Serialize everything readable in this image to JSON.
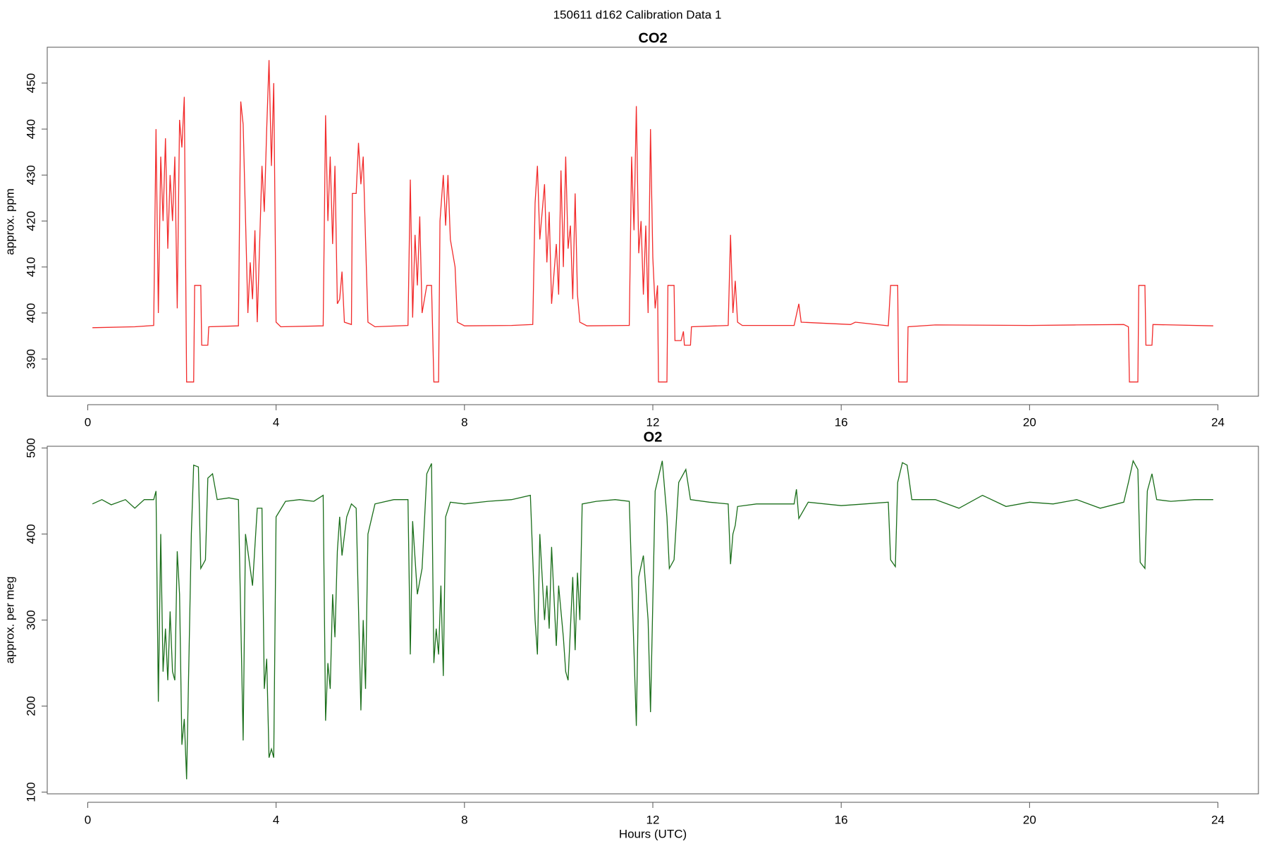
{
  "title": "150611   d162   Calibration Data 1",
  "chart_data": [
    {
      "type": "line",
      "title": "CO2",
      "ylabel": "approx. ppm",
      "color": "#f22a2a",
      "xlim": [
        -0.86,
        24.86
      ],
      "xticks": [
        0,
        4,
        8,
        12,
        16,
        20,
        24
      ],
      "ylim": [
        381.9,
        457.8
      ],
      "yticks": [
        390,
        400,
        410,
        420,
        430,
        440,
        450
      ],
      "x": [
        0.1,
        1.0,
        1.4,
        1.45,
        1.5,
        1.55,
        1.6,
        1.65,
        1.7,
        1.75,
        1.8,
        1.85,
        1.9,
        1.95,
        2.0,
        2.05,
        2.1,
        2.25,
        2.27,
        2.4,
        2.42,
        2.55,
        2.57,
        3.2,
        3.25,
        3.3,
        3.4,
        3.45,
        3.5,
        3.55,
        3.6,
        3.7,
        3.75,
        3.8,
        3.85,
        3.9,
        3.95,
        4.0,
        4.1,
        5.0,
        5.05,
        5.1,
        5.15,
        5.2,
        5.25,
        5.3,
        5.35,
        5.4,
        5.45,
        5.6,
        5.62,
        5.7,
        5.75,
        5.8,
        5.85,
        5.9,
        5.95,
        6.1,
        6.8,
        6.85,
        6.9,
        6.95,
        7.0,
        7.05,
        7.1,
        7.2,
        7.3,
        7.35,
        7.45,
        7.48,
        7.55,
        7.6,
        7.65,
        7.7,
        7.8,
        7.85,
        8.0,
        9.0,
        9.45,
        9.5,
        9.55,
        9.6,
        9.7,
        9.75,
        9.8,
        9.85,
        9.95,
        10.0,
        10.05,
        10.1,
        10.15,
        10.2,
        10.25,
        10.3,
        10.35,
        10.4,
        10.45,
        10.6,
        11.5,
        11.55,
        11.6,
        11.65,
        11.7,
        11.75,
        11.8,
        11.85,
        11.9,
        11.95,
        12.0,
        12.05,
        12.1,
        12.12,
        12.3,
        12.32,
        12.45,
        12.47,
        12.6,
        12.65,
        12.67,
        12.8,
        12.82,
        13.6,
        13.65,
        13.7,
        13.75,
        13.8,
        13.9,
        15.0,
        15.1,
        15.15,
        16.2,
        16.3,
        17.0,
        17.05,
        17.2,
        17.22,
        17.4,
        17.42,
        18.0,
        20.0,
        21.0,
        22.0,
        22.1,
        22.12,
        22.3,
        22.32,
        22.45,
        22.47,
        22.6,
        22.62,
        23.9
      ],
      "values": [
        396.8,
        397.0,
        397.3,
        440,
        400,
        434,
        420,
        438,
        414,
        430,
        420,
        434,
        401,
        442,
        436,
        447,
        385,
        385,
        406,
        406,
        393,
        393,
        397,
        397.2,
        446,
        441,
        400,
        411,
        403,
        418,
        398,
        432,
        422,
        440,
        455,
        432,
        450,
        398,
        397,
        397.2,
        443,
        420,
        434,
        415,
        432,
        402,
        403,
        409,
        398,
        397.5,
        426,
        426,
        437,
        428,
        434,
        416,
        398,
        397,
        397.3,
        429,
        399,
        417,
        406,
        421,
        400,
        406,
        406,
        385,
        385,
        420,
        430,
        419,
        430,
        416,
        410,
        398,
        397.2,
        397.3,
        397.5,
        424,
        432,
        416,
        428,
        411,
        422,
        402,
        415,
        404,
        431,
        410,
        434,
        414,
        419,
        403,
        426,
        404,
        398,
        397.2,
        397.3,
        434,
        418,
        445,
        413,
        420,
        404,
        419,
        400,
        440,
        412,
        401,
        406,
        385,
        385,
        406,
        406,
        394,
        394,
        396,
        393,
        393,
        397,
        397.3,
        417,
        400,
        407,
        398,
        397.3,
        397.3,
        402,
        398,
        397.5,
        398,
        397.2,
        406,
        406,
        385,
        385,
        397,
        397.4,
        397.3,
        397.4,
        397.5,
        397,
        385,
        385,
        406,
        406,
        393,
        393,
        397.5,
        397.2
      ]
    },
    {
      "type": "line",
      "title": "O2",
      "ylabel": "approx. per meg",
      "xlabel": "Hours (UTC)",
      "color": "#1a6e1a",
      "xlim": [
        -0.86,
        24.86
      ],
      "xticks": [
        0,
        4,
        8,
        12,
        16,
        20,
        24
      ],
      "ylim": [
        98,
        502
      ],
      "yticks": [
        100,
        200,
        300,
        400,
        500
      ],
      "x": [
        0.1,
        0.3,
        0.5,
        0.8,
        1.0,
        1.2,
        1.4,
        1.45,
        1.5,
        1.55,
        1.6,
        1.65,
        1.7,
        1.75,
        1.8,
        1.85,
        1.9,
        1.95,
        2.0,
        2.05,
        2.1,
        2.2,
        2.25,
        2.35,
        2.4,
        2.5,
        2.55,
        2.65,
        2.75,
        3.0,
        3.2,
        3.3,
        3.35,
        3.4,
        3.5,
        3.6,
        3.7,
        3.75,
        3.8,
        3.85,
        3.9,
        3.95,
        4.0,
        4.2,
        4.5,
        4.8,
        5.0,
        5.05,
        5.1,
        5.15,
        5.2,
        5.25,
        5.3,
        5.35,
        5.4,
        5.5,
        5.6,
        5.7,
        5.8,
        5.85,
        5.9,
        5.95,
        6.1,
        6.5,
        6.8,
        6.85,
        6.9,
        7.0,
        7.1,
        7.2,
        7.3,
        7.35,
        7.4,
        7.45,
        7.5,
        7.55,
        7.6,
        7.7,
        8.0,
        8.5,
        9.0,
        9.4,
        9.5,
        9.55,
        9.6,
        9.7,
        9.75,
        9.8,
        9.85,
        9.95,
        10.0,
        10.1,
        10.15,
        10.2,
        10.3,
        10.35,
        10.4,
        10.45,
        10.5,
        10.8,
        11.2,
        11.5,
        11.6,
        11.65,
        11.7,
        11.8,
        11.9,
        11.95,
        12.05,
        12.2,
        12.3,
        12.35,
        12.45,
        12.55,
        12.7,
        12.8,
        13.2,
        13.6,
        13.65,
        13.7,
        13.75,
        13.8,
        14.2,
        14.7,
        15.0,
        15.05,
        15.1,
        15.3,
        16.0,
        16.5,
        17.0,
        17.05,
        17.15,
        17.2,
        17.3,
        17.4,
        17.5,
        18.0,
        18.5,
        19.0,
        19.5,
        20.0,
        20.5,
        21.0,
        21.5,
        22.0,
        22.1,
        22.2,
        22.3,
        22.35,
        22.45,
        22.5,
        22.6,
        22.7,
        23.0,
        23.5,
        23.9
      ],
      "values": [
        435,
        440,
        434,
        440,
        430,
        440,
        440,
        450,
        205,
        400,
        240,
        290,
        230,
        310,
        240,
        230,
        380,
        330,
        155,
        185,
        115,
        400,
        480,
        478,
        360,
        370,
        465,
        470,
        440,
        442,
        440,
        160,
        400,
        380,
        340,
        430,
        430,
        220,
        255,
        140,
        150,
        140,
        420,
        438,
        440,
        438,
        445,
        183,
        250,
        220,
        330,
        280,
        380,
        420,
        375,
        420,
        435,
        430,
        195,
        300,
        220,
        400,
        435,
        440,
        440,
        260,
        415,
        330,
        360,
        470,
        482,
        250,
        290,
        260,
        340,
        235,
        420,
        437,
        435,
        438,
        440,
        445,
        300,
        260,
        400,
        300,
        340,
        290,
        385,
        270,
        340,
        280,
        240,
        230,
        350,
        265,
        355,
        300,
        435,
        438,
        440,
        438,
        263,
        177,
        350,
        375,
        300,
        193,
        450,
        485,
        420,
        360,
        370,
        460,
        475,
        440,
        437,
        435,
        365,
        400,
        410,
        432,
        435,
        435,
        435,
        452,
        418,
        437,
        433,
        435,
        437,
        370,
        362,
        460,
        483,
        480,
        440,
        440,
        430,
        445,
        432,
        437,
        435,
        440,
        430,
        437,
        460,
        485,
        475,
        367,
        360,
        450,
        470,
        440,
        438,
        440,
        440
      ]
    }
  ]
}
